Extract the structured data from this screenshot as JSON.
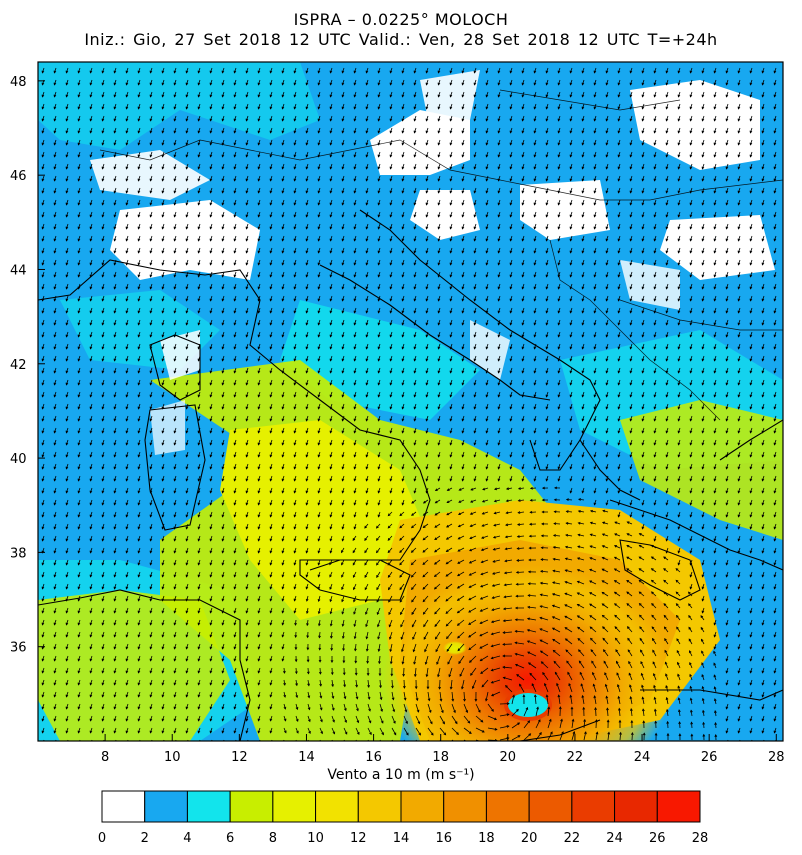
{
  "title_line1": "ISPRA – 0.0225° MOLOCH",
  "title_line2": "Iniz.: Gio, 27 Set 2018  12 UTC  Valid.: Ven, 28 Set 2018  12 UTC  T=+24h",
  "colorbar": {
    "label": "Vento a 10 m (m s⁻¹)",
    "ticks": [
      "0",
      "2",
      "4",
      "6",
      "8",
      "10",
      "12",
      "14",
      "16",
      "18",
      "20",
      "22",
      "24",
      "26",
      "28"
    ],
    "colors": [
      "#ffffff",
      "#18a8f0",
      "#12e4ec",
      "#c8ee00",
      "#e6f000",
      "#f2e200",
      "#f4c800",
      "#f2aa00",
      "#f09000",
      "#ee7400",
      "#ec5a00",
      "#ea3c00",
      "#e82800",
      "#f81800"
    ]
  },
  "map": {
    "lon_ticks": [
      "8",
      "10",
      "12",
      "14",
      "16",
      "18",
      "20",
      "22",
      "24",
      "26",
      "28"
    ],
    "lat_ticks": [
      "48",
      "46",
      "44",
      "42",
      "40",
      "38",
      "36"
    ],
    "extent": {
      "lon": [
        6,
        28.2
      ],
      "lat": [
        34,
        48.4
      ]
    },
    "cyclone_center": {
      "lon": 19.8,
      "lat": 34.9
    }
  }
}
